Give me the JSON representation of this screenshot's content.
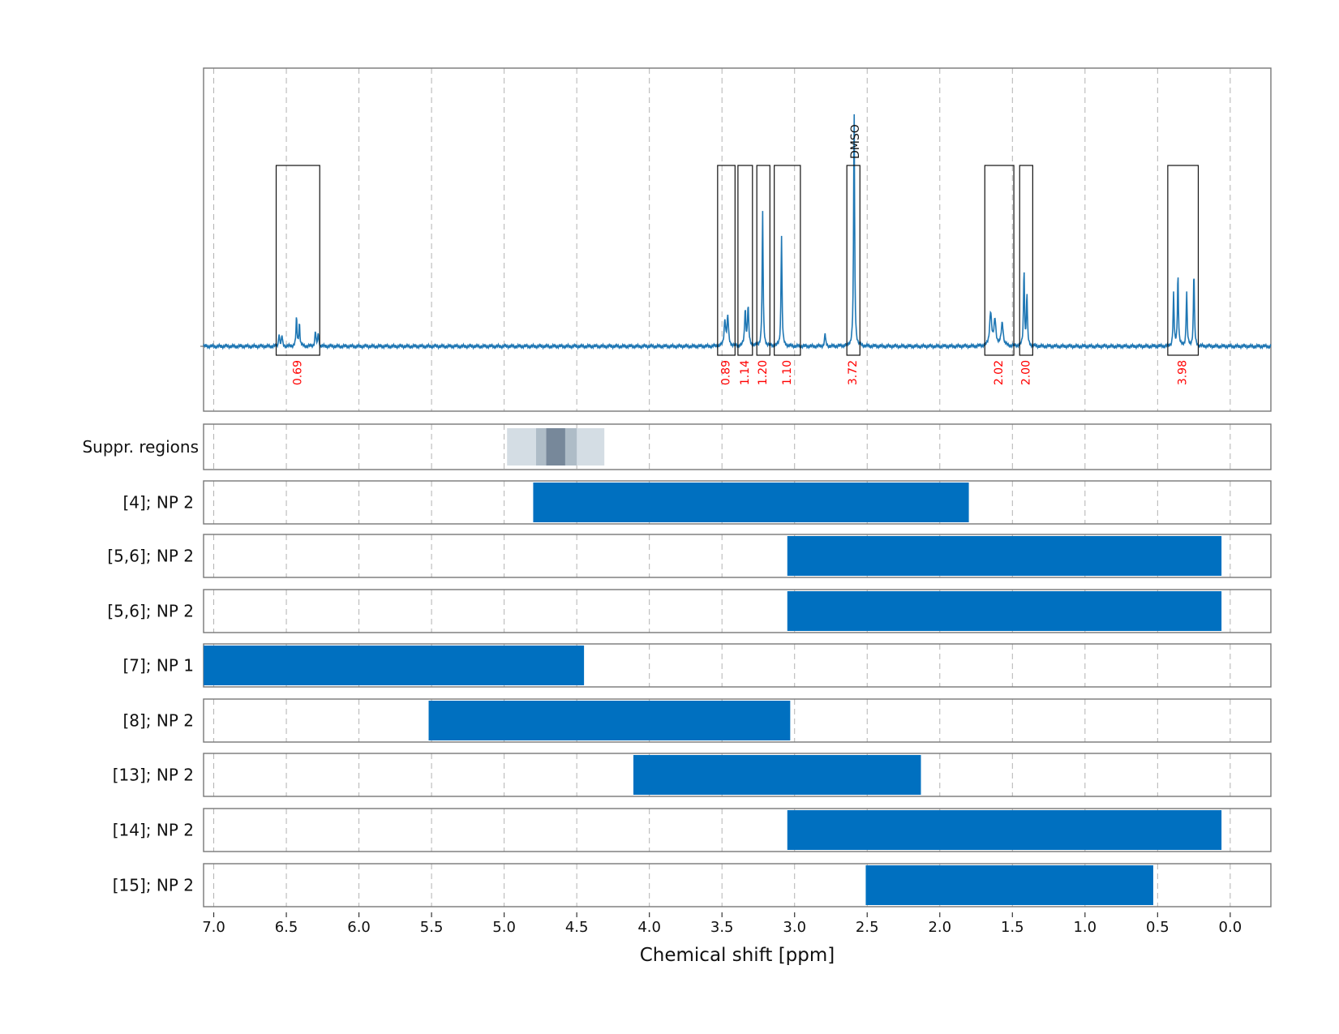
{
  "chart_data": {
    "type": "spectrum-with-ranges",
    "xlabel": "Chemical shift [ppm]",
    "x_range": [
      7.07,
      -0.28
    ],
    "x_ticks": [
      "7.0",
      "6.5",
      "6.0",
      "5.5",
      "5.0",
      "4.5",
      "4.0",
      "3.5",
      "3.0",
      "2.5",
      "2.0",
      "1.5",
      "1.0",
      "0.5",
      "0.0"
    ],
    "x_tick_values": [
      7.0,
      6.5,
      6.0,
      5.5,
      5.0,
      4.5,
      4.0,
      3.5,
      3.0,
      2.5,
      2.0,
      1.5,
      1.0,
      0.5,
      0.0
    ],
    "grid": true,
    "spectrum": {
      "color": "#1f77b4",
      "peaks": [
        {
          "ppm": 6.55,
          "h": 0.05,
          "w": 0.004
        },
        {
          "ppm": 6.53,
          "h": 0.04,
          "w": 0.004
        },
        {
          "ppm": 6.43,
          "h": 0.11,
          "w": 0.004
        },
        {
          "ppm": 6.41,
          "h": 0.09,
          "w": 0.004
        },
        {
          "ppm": 6.3,
          "h": 0.06,
          "w": 0.004
        },
        {
          "ppm": 6.28,
          "h": 0.05,
          "w": 0.004
        },
        {
          "ppm": 3.48,
          "h": 0.1,
          "w": 0.006
        },
        {
          "ppm": 3.46,
          "h": 0.11,
          "w": 0.006
        },
        {
          "ppm": 3.34,
          "h": 0.14,
          "w": 0.005
        },
        {
          "ppm": 3.32,
          "h": 0.15,
          "w": 0.005
        },
        {
          "ppm": 3.22,
          "h": 0.52,
          "w": 0.004
        },
        {
          "ppm": 3.09,
          "h": 0.43,
          "w": 0.004
        },
        {
          "ppm": 2.79,
          "h": 0.05,
          "w": 0.004
        },
        {
          "ppm": 2.59,
          "h": 0.92,
          "w": 0.004
        },
        {
          "ppm": 1.65,
          "h": 0.13,
          "w": 0.008
        },
        {
          "ppm": 1.62,
          "h": 0.1,
          "w": 0.008
        },
        {
          "ppm": 1.57,
          "h": 0.09,
          "w": 0.008
        },
        {
          "ppm": 1.42,
          "h": 0.3,
          "w": 0.004
        },
        {
          "ppm": 1.4,
          "h": 0.2,
          "w": 0.004
        },
        {
          "ppm": 0.39,
          "h": 0.2,
          "w": 0.004
        },
        {
          "ppm": 0.36,
          "h": 0.28,
          "w": 0.004
        },
        {
          "ppm": 0.3,
          "h": 0.21,
          "w": 0.004
        },
        {
          "ppm": 0.25,
          "h": 0.29,
          "w": 0.004
        }
      ]
    },
    "integration_regions": [
      {
        "from": 6.57,
        "to": 6.27,
        "label": "0.69"
      },
      {
        "from": 3.53,
        "to": 3.41,
        "label": "0.89"
      },
      {
        "from": 3.39,
        "to": 3.29,
        "label": "1.14"
      },
      {
        "from": 3.26,
        "to": 3.17,
        "label": "1.20"
      },
      {
        "from": 3.14,
        "to": 2.96,
        "label": "1.10"
      },
      {
        "from": 2.64,
        "to": 2.55,
        "label": "3.72"
      },
      {
        "from": 1.69,
        "to": 1.49,
        "label": "2.02"
      },
      {
        "from": 1.45,
        "to": 1.36,
        "label": "2.00"
      },
      {
        "from": 0.43,
        "to": 0.22,
        "label": "3.98"
      }
    ],
    "solvent_label": {
      "text": "DMSO",
      "ppm": 2.58
    },
    "suppression": {
      "label": "Suppr. regions",
      "bands": [
        {
          "from": 4.98,
          "to": 4.31,
          "color": "#d4dde4"
        },
        {
          "from": 4.78,
          "to": 4.5,
          "color": "#aebcc7"
        },
        {
          "from": 4.71,
          "to": 4.58,
          "color": "#77889a"
        }
      ]
    },
    "range_rows": [
      {
        "label": "[4]; NP 2",
        "from": 4.8,
        "to": 1.8
      },
      {
        "label": "[5,6]; NP 2",
        "from": 3.05,
        "to": 0.06
      },
      {
        "label": "[5,6]; NP 2",
        "from": 3.05,
        "to": 0.06
      },
      {
        "label": "[7]; NP 1",
        "from": 7.07,
        "to": 4.45
      },
      {
        "label": "[8]; NP 2",
        "from": 5.52,
        "to": 3.03
      },
      {
        "label": "[13]; NP 2",
        "from": 4.11,
        "to": 2.13
      },
      {
        "label": "[14]; NP 2",
        "from": 3.05,
        "to": 0.06
      },
      {
        "label": "[15]; NP 2",
        "from": 2.51,
        "to": 0.53
      }
    ],
    "bar_color": "#0070c0"
  }
}
